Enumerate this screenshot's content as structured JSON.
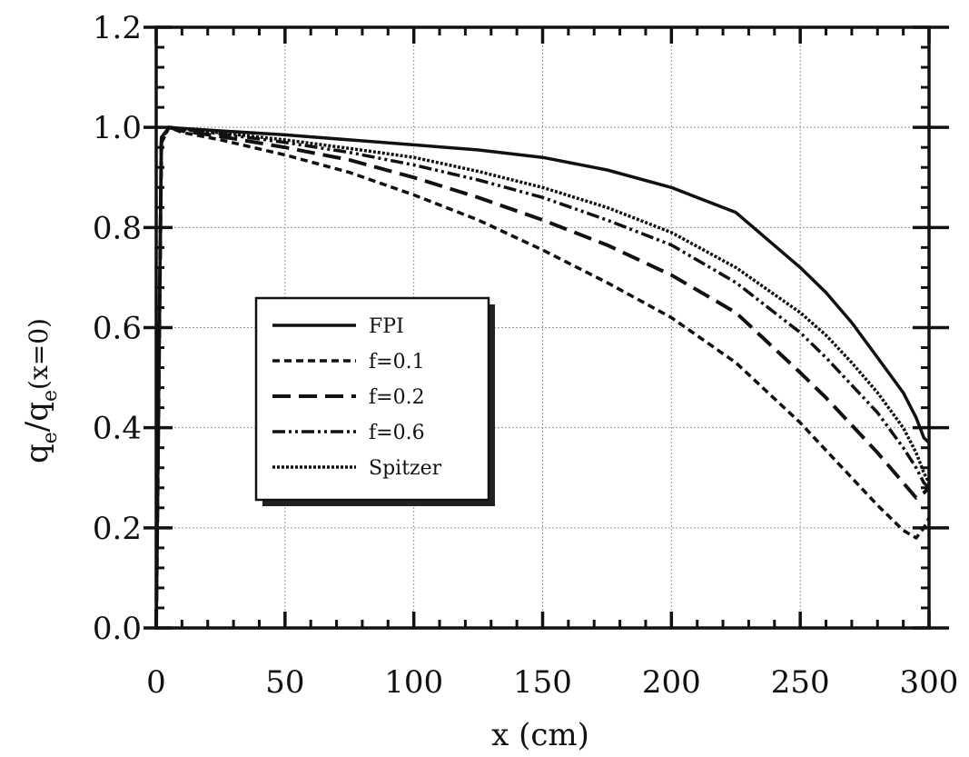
{
  "chart_data": {
    "type": "line",
    "xlabel": "x (cm)",
    "ylabel": {
      "text_main": "q",
      "sub1": "e",
      "slash": "/",
      "text_main2": "q",
      "sub2": "e",
      "suffix": "(x=0)"
    },
    "xlim": [
      0,
      300
    ],
    "ylim": [
      0,
      1.2
    ],
    "xticks": [
      0,
      50,
      100,
      150,
      200,
      250,
      300
    ],
    "xtick_labels": [
      "0",
      "50",
      "100",
      "150",
      "200",
      "250",
      "300"
    ],
    "yticks": [
      0,
      0.2,
      0.4,
      0.6,
      0.8,
      1.0,
      1.2
    ],
    "ytick_labels": [
      "0.0",
      "0.2",
      "0.4",
      "0.6",
      "0.8",
      "1.0",
      "1.2"
    ],
    "grid": true,
    "legend_position": "center-left",
    "x": [
      0,
      2,
      5,
      10,
      25,
      50,
      75,
      100,
      125,
      150,
      175,
      200,
      225,
      250,
      260,
      270,
      280,
      290,
      295,
      298,
      300
    ],
    "series": [
      {
        "name": "FPI",
        "style": "solid",
        "values": [
          0.0,
          0.98,
          1.0,
          0.998,
          0.993,
          0.985,
          0.975,
          0.965,
          0.955,
          0.94,
          0.915,
          0.88,
          0.83,
          0.72,
          0.67,
          0.61,
          0.54,
          0.47,
          0.42,
          0.38,
          0.37
        ]
      },
      {
        "name": "f=0.1",
        "style": "short-dash",
        "values": [
          0.0,
          0.97,
          1.0,
          0.99,
          0.975,
          0.945,
          0.91,
          0.865,
          0.815,
          0.755,
          0.69,
          0.62,
          0.53,
          0.41,
          0.355,
          0.3,
          0.245,
          0.195,
          0.18,
          0.2,
          0.22
        ]
      },
      {
        "name": "f=0.2",
        "style": "long-dash",
        "values": [
          0.0,
          0.97,
          1.0,
          0.993,
          0.982,
          0.96,
          0.935,
          0.9,
          0.86,
          0.815,
          0.765,
          0.705,
          0.63,
          0.51,
          0.46,
          0.405,
          0.35,
          0.29,
          0.26,
          0.27,
          0.28
        ]
      },
      {
        "name": "f=0.6",
        "style": "dash-dot-dot",
        "values": [
          0.0,
          0.975,
          1.0,
          0.996,
          0.987,
          0.97,
          0.95,
          0.925,
          0.895,
          0.86,
          0.815,
          0.765,
          0.69,
          0.59,
          0.54,
          0.485,
          0.43,
          0.36,
          0.32,
          0.29,
          0.28
        ]
      },
      {
        "name": "Spitzer",
        "style": "dotted",
        "values": [
          0.0,
          0.98,
          1.0,
          0.997,
          0.989,
          0.975,
          0.958,
          0.94,
          0.912,
          0.88,
          0.84,
          0.79,
          0.72,
          0.63,
          0.585,
          0.53,
          0.47,
          0.4,
          0.35,
          0.31,
          0.29
        ]
      }
    ]
  }
}
